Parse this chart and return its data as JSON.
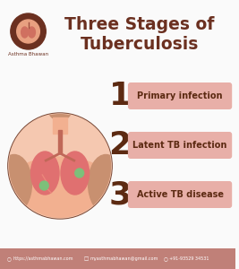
{
  "title_line1": "Three Stages of",
  "title_line2": "Tuberculosis",
  "title_color": "#6B3020",
  "bg_color": "#FAFAFA",
  "footer_bg": "#C08078",
  "footer_text_color": "#FFFFFF",
  "footer_items": [
    "https://asthmabhawan.com",
    "myasthmabhawan@gmail.com",
    "+91-93529 34531"
  ],
  "stages": [
    {
      "number": "1",
      "label": "Primary infection"
    },
    {
      "number": "2",
      "label": "Latent TB infection"
    },
    {
      "number": "3",
      "label": "Active TB disease"
    }
  ],
  "number_color": "#5C2A12",
  "label_bg": "#E8AFA8",
  "label_text_color": "#5C2A12",
  "circle_border_color": "#7A4A38",
  "circle_fill": "#F5C8B0",
  "skin_color": "#F2B090",
  "lung_color": "#E07070",
  "lung_inner": "#D06060",
  "trachea_color": "#C06858",
  "nodule_color": "#7DC07A",
  "head_color": "#C89070",
  "logo_outer": "#6B3020",
  "logo_inner": "#E8A080",
  "brand_color": "#6B3020"
}
